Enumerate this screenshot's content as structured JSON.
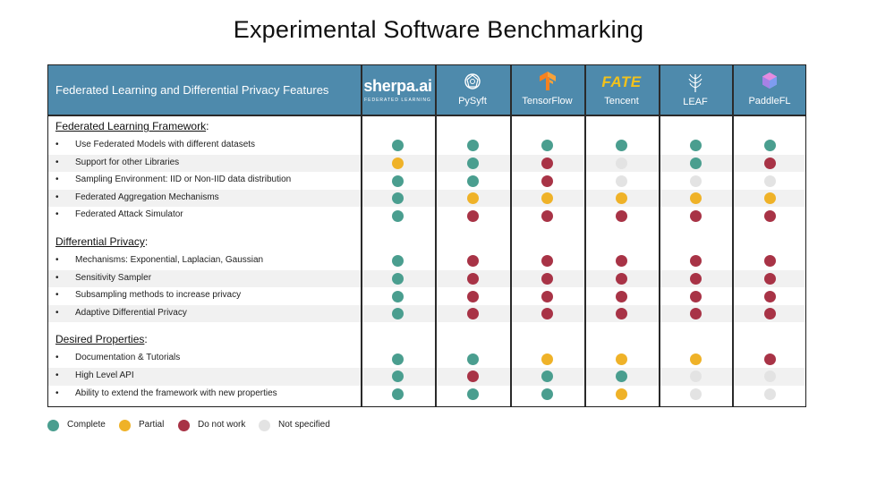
{
  "title": "Experimental Software Benchmarking",
  "header_label": "Federated Learning and Differential Privacy Features",
  "colors": {
    "header_bg": "#4e8aac",
    "complete": "#4a9e8f",
    "partial": "#efb228",
    "not_work": "#a83346",
    "not_specified": "#e3e3e3"
  },
  "columns": [
    {
      "id": "sherpa",
      "name": "sherpa.ai",
      "subtitle": "FEDERATED LEARNING",
      "icon": "sherpa-logo"
    },
    {
      "id": "pysyft",
      "name": "PySyft",
      "icon": "pysyft-logo-icon"
    },
    {
      "id": "tensorflow",
      "name": "TensorFlow",
      "icon": "tensorflow-logo-icon"
    },
    {
      "id": "tencent",
      "name": "Tencent",
      "logo_text": "FATE",
      "icon": "fate-logo"
    },
    {
      "id": "leaf",
      "name": "LEAF",
      "icon": "leaf-logo-icon"
    },
    {
      "id": "paddlefl",
      "name": "PaddleFL",
      "icon": "paddlefl-logo-icon"
    }
  ],
  "sections": [
    {
      "title": "Federated Learning Framework",
      "rows": [
        {
          "label": "Use Federated Models with different datasets",
          "status": [
            "complete",
            "complete",
            "complete",
            "complete",
            "complete",
            "complete"
          ]
        },
        {
          "label": "Support for other Libraries",
          "status": [
            "partial",
            "complete",
            "not_work",
            "not_specified",
            "complete",
            "not_work"
          ]
        },
        {
          "label": "Sampling Environment: IID or Non-IID data distribution",
          "status": [
            "complete",
            "complete",
            "not_work",
            "not_specified",
            "not_specified",
            "not_specified"
          ]
        },
        {
          "label": "Federated Aggregation Mechanisms",
          "status": [
            "complete",
            "partial",
            "partial",
            "partial",
            "partial",
            "partial"
          ]
        },
        {
          "label": "Federated Attack Simulator",
          "status": [
            "complete",
            "not_work",
            "not_work",
            "not_work",
            "not_work",
            "not_work"
          ]
        }
      ]
    },
    {
      "title": "Differential Privacy",
      "rows": [
        {
          "label": "Mechanisms: Exponential, Laplacian, Gaussian",
          "status": [
            "complete",
            "not_work",
            "not_work",
            "not_work",
            "not_work",
            "not_work"
          ]
        },
        {
          "label": "Sensitivity Sampler",
          "status": [
            "complete",
            "not_work",
            "not_work",
            "not_work",
            "not_work",
            "not_work"
          ]
        },
        {
          "label": "Subsampling methods to increase privacy",
          "status": [
            "complete",
            "not_work",
            "not_work",
            "not_work",
            "not_work",
            "not_work"
          ]
        },
        {
          "label": "Adaptive Differential Privacy",
          "status": [
            "complete",
            "not_work",
            "not_work",
            "not_work",
            "not_work",
            "not_work"
          ]
        }
      ]
    },
    {
      "title": "Desired Properties",
      "rows": [
        {
          "label": "Documentation & Tutorials",
          "status": [
            "complete",
            "complete",
            "partial",
            "partial",
            "partial",
            "not_work"
          ]
        },
        {
          "label": "High Level API",
          "status": [
            "complete",
            "not_work",
            "complete",
            "complete",
            "not_specified",
            "not_specified"
          ]
        },
        {
          "label": "Ability to extend the framework with new properties",
          "status": [
            "complete",
            "complete",
            "complete",
            "partial",
            "not_specified",
            "not_specified"
          ]
        }
      ]
    }
  ],
  "legend": [
    {
      "key": "complete",
      "label": "Complete"
    },
    {
      "key": "partial",
      "label": "Partial"
    },
    {
      "key": "not_work",
      "label": "Do not work"
    },
    {
      "key": "not_specified",
      "label": "Not specified"
    }
  ]
}
